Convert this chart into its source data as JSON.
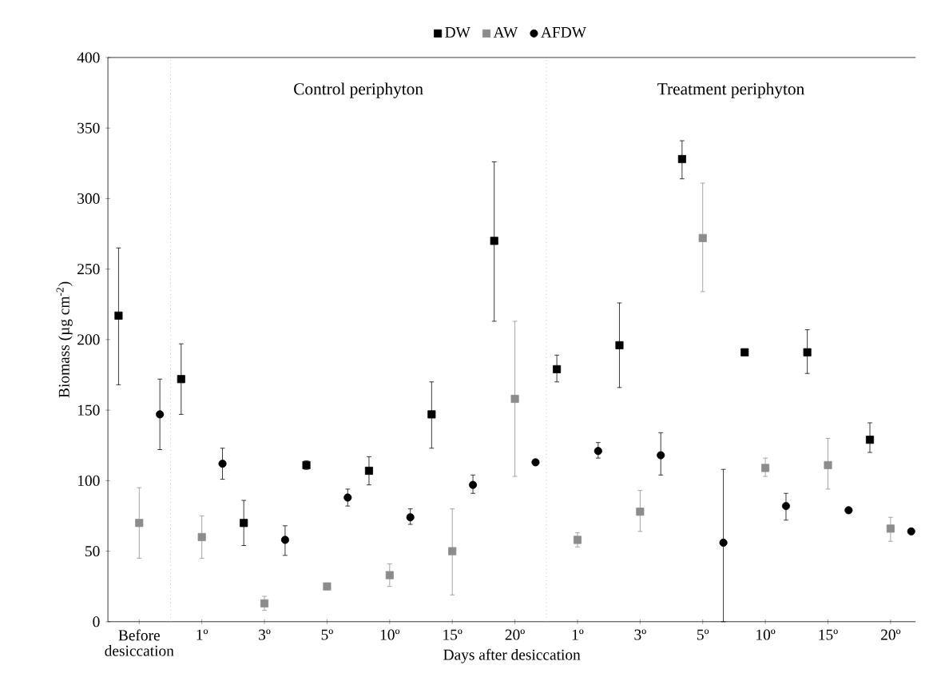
{
  "chart_data": {
    "type": "scatter",
    "xlabel": "Days after desiccation",
    "ylabel": "Biomass (µg cm$^{-2}$)",
    "categories": [
      "Before desiccation",
      "1º",
      "3º",
      "5º",
      "10º",
      "15º",
      "20º",
      "1º",
      "3º",
      "5º",
      "10º",
      "15º",
      "20º"
    ],
    "series": [
      {
        "name": "DW",
        "color": "#000000",
        "marker": "square",
        "values": [
          217,
          172,
          70,
          111,
          107,
          147,
          270,
          179,
          196,
          328,
          191,
          191,
          129
        ],
        "errors": [
          [
            168,
            265
          ],
          [
            147,
            197
          ],
          [
            54,
            86
          ],
          [
            108,
            114
          ],
          [
            97,
            117
          ],
          [
            123,
            170
          ],
          [
            213,
            326
          ],
          [
            170,
            189
          ],
          [
            166,
            226
          ],
          [
            314,
            341
          ],
          null,
          [
            176,
            207
          ],
          [
            120,
            141
          ]
        ]
      },
      {
        "name": "AW",
        "color": "#8c8c8c",
        "marker": "square",
        "values": [
          70,
          60,
          13,
          25,
          33,
          50,
          158,
          58,
          78,
          272,
          109,
          111,
          66
        ],
        "errors": [
          [
            45,
            95
          ],
          [
            45,
            75
          ],
          [
            8,
            18
          ],
          null,
          [
            25,
            41
          ],
          [
            19,
            80
          ],
          [
            103,
            213
          ],
          [
            53,
            63
          ],
          [
            64,
            93
          ],
          [
            234,
            311
          ],
          [
            103,
            116
          ],
          [
            94,
            130
          ],
          [
            57,
            74
          ]
        ]
      },
      {
        "name": "AFDW",
        "color": "#000000",
        "marker": "circle",
        "values": [
          147,
          112,
          58,
          88,
          74,
          97,
          113,
          121,
          118,
          56,
          82,
          79,
          64
        ],
        "errors": [
          [
            122,
            172
          ],
          [
            101,
            123
          ],
          [
            47,
            68
          ],
          [
            82,
            94
          ],
          [
            69,
            80
          ],
          [
            91,
            104
          ],
          null,
          [
            116,
            127
          ],
          [
            104,
            134
          ],
          [
            0,
            108
          ],
          [
            72,
            91
          ],
          null,
          null
        ]
      }
    ],
    "ylim": [
      0,
      400
    ],
    "yticks": [
      0,
      50,
      100,
      150,
      200,
      250,
      300,
      350,
      400
    ],
    "annotations": [
      "Control periphyton",
      "Treatment periphyton"
    ],
    "legend": "top",
    "grid": false
  }
}
